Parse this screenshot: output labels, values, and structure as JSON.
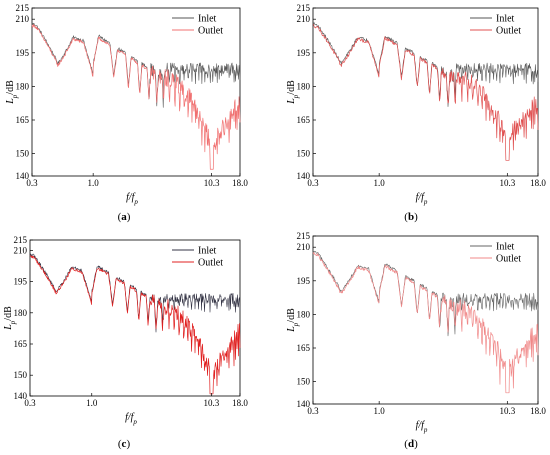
{
  "chart_data": [
    {
      "panel_label": "(a)",
      "type": "line",
      "xlabel": "f/fp",
      "ylabel": "Lp/dB",
      "xscale": "log",
      "xlim": [
        0.3,
        18.0
      ],
      "ylim": [
        140,
        215
      ],
      "xticks": [
        "0.3",
        "1.0",
        "10.3",
        "18.0"
      ],
      "yticks": [
        "140",
        "150",
        "165",
        "180",
        "195",
        "210",
        "215"
      ],
      "legend_position": "top-right",
      "series": [
        {
          "name": "Inlet",
          "color": "#555555",
          "level_high": 188,
          "level_min": 181
        },
        {
          "name": "Outlet",
          "color": "#f07070",
          "min_value": 143,
          "min_at": 10.3,
          "end_value": 172
        }
      ]
    },
    {
      "panel_label": "(b)",
      "type": "line",
      "xlabel": "f/fp",
      "ylabel": "Lp/dB",
      "xscale": "log",
      "xlim": [
        0.3,
        18.0
      ],
      "ylim": [
        140,
        215
      ],
      "xticks": [
        "0.3",
        "1.0",
        "10.3",
        "18.0"
      ],
      "yticks": [
        "140",
        "150",
        "165",
        "180",
        "195",
        "210",
        "215"
      ],
      "legend_position": "top-right",
      "series": [
        {
          "name": "Inlet",
          "color": "#555555",
          "level_high": 188,
          "level_min": 181
        },
        {
          "name": "Outlet",
          "color": "#e05050",
          "min_value": 147,
          "min_at": 10.3,
          "end_value": 172
        }
      ]
    },
    {
      "panel_label": "(c)",
      "type": "line",
      "xlabel": "f/fp",
      "ylabel": "Lp/dB",
      "xscale": "log",
      "xlim": [
        0.3,
        18.0
      ],
      "ylim": [
        140,
        215
      ],
      "xticks": [
        "0.3",
        "1.0",
        "10.3",
        "18.0"
      ],
      "yticks": [
        "140",
        "150",
        "165",
        "180",
        "195",
        "210",
        "215"
      ],
      "legend_position": "top-right",
      "series": [
        {
          "name": "Inlet",
          "color": "#333344",
          "level_high": 187,
          "level_min": 180
        },
        {
          "name": "Outlet",
          "color": "#e02020",
          "min_value": 141,
          "min_at": 10.3,
          "end_value": 170
        }
      ]
    },
    {
      "panel_label": "(d)",
      "type": "line",
      "xlabel": "f/fp",
      "ylabel": "Lp/dB",
      "xscale": "log",
      "xlim": [
        0.3,
        18.0
      ],
      "ylim": [
        140,
        215
      ],
      "xticks": [
        "0.3",
        "1.0",
        "10.3",
        "18.0"
      ],
      "yticks": [
        "140",
        "150",
        "165",
        "180",
        "195",
        "210",
        "215"
      ],
      "legend_position": "top-right",
      "series": [
        {
          "name": "Inlet",
          "color": "#666666",
          "level_high": 187,
          "level_min": 181
        },
        {
          "name": "Outlet",
          "color": "#f08888",
          "min_value": 145,
          "min_at": 10.3,
          "end_value": 172
        }
      ]
    }
  ]
}
